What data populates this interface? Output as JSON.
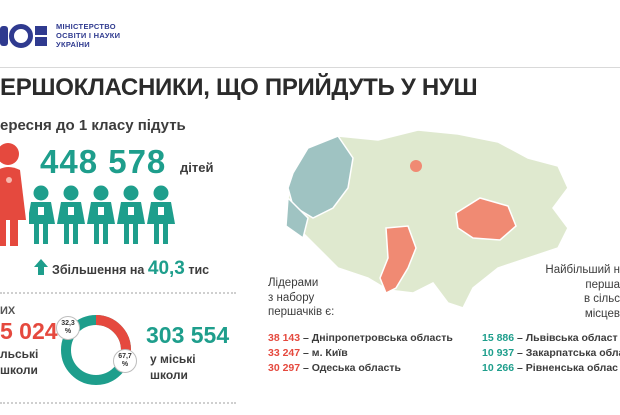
{
  "ministry": {
    "lines": [
      "МІНІСТЕРСТВО",
      "ОСВІТИ І НАУКИ",
      "УКРАЇНИ"
    ]
  },
  "title": "ЕРШОКЛАСНИКИ, ЩО ПРИЙДУТЬ У НУШ",
  "subtitle": "ересня до 1 класу підуть",
  "total": {
    "value": "448 578",
    "unit": "дітей"
  },
  "increase": {
    "label": "Збільшення на",
    "value": "40,3",
    "unit": "тис"
  },
  "rural": {
    "head": "ИХ",
    "value": "5 024",
    "label_line1": "льські",
    "label_line2": "школи",
    "percent": "32,3",
    "percent_sign": "%"
  },
  "city": {
    "value": "303 554",
    "label_line1": "у міські",
    "label_line2": "школи",
    "percent": "67,7",
    "percent_sign": "%"
  },
  "leaders": {
    "label_lines": [
      "Лідерами",
      "з набору",
      "першачків є:"
    ],
    "items": [
      {
        "num": "38 143",
        "name": "– Дніпропетровська область"
      },
      {
        "num": "33 247",
        "name": "– м. Київ"
      },
      {
        "num": "30 297",
        "name": "– Одеська область"
      }
    ]
  },
  "rural_leaders": {
    "label_lines": [
      "Найбільший н",
      "перша",
      "в сільс",
      "місцев"
    ],
    "items": [
      {
        "num": "15 886",
        "name": "– Львівська област"
      },
      {
        "num": "10 937",
        "name": "– Закарпатська обла"
      },
      {
        "num": "10 266",
        "name": "– Рівненська облас"
      }
    ]
  },
  "colors": {
    "teal": "#1e9e8c",
    "red": "#e5493e",
    "navy": "#2f3a8f",
    "map_base": "#dfe9cf",
    "map_west": "#9fc3c2",
    "map_salmon": "#f08a73"
  },
  "icons": [
    "ministry-logo-icon",
    "girl-figure-icon",
    "child-figure-icon",
    "up-arrow-icon",
    "donut-chart"
  ]
}
